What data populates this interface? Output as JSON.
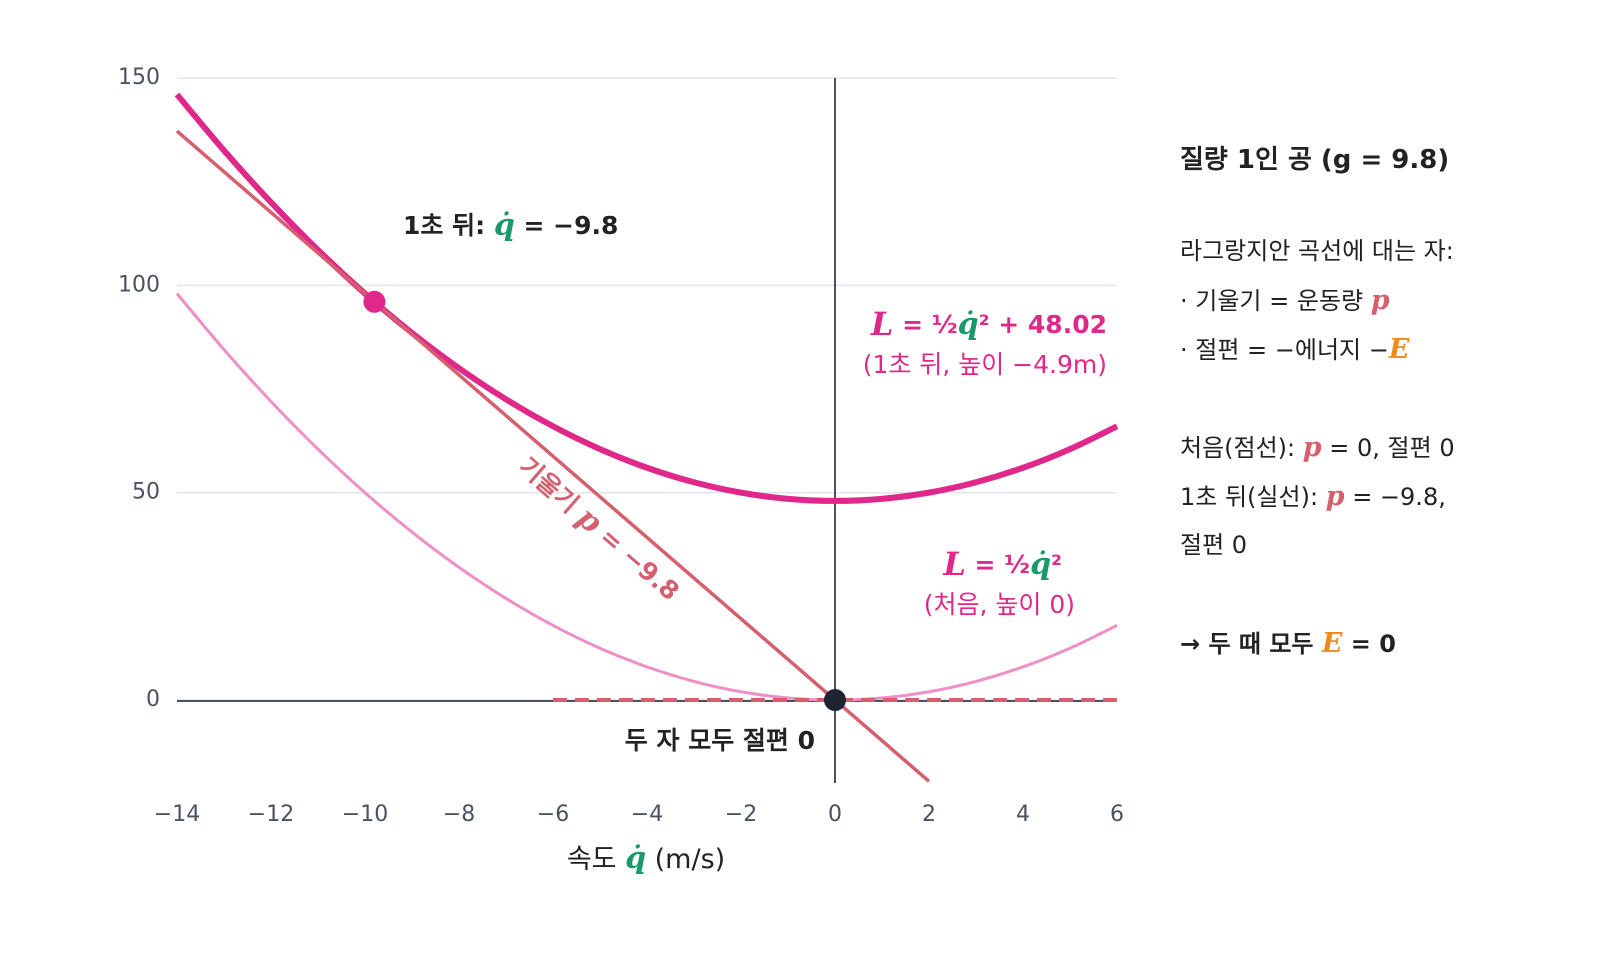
{
  "chart_data": {
    "type": "line",
    "x_label": [
      "속도 ",
      "q̇",
      " (m/s)"
    ],
    "xlim": [
      -14,
      6
    ],
    "ylim": [
      -20,
      150
    ],
    "xticks": [
      {
        "value": -14,
        "label": "−14"
      },
      {
        "value": -12,
        "label": "−12"
      },
      {
        "value": -10,
        "label": "−10"
      },
      {
        "value": -8,
        "label": "−8"
      },
      {
        "value": -6,
        "label": "−6"
      },
      {
        "value": -4,
        "label": "−4"
      },
      {
        "value": -2,
        "label": "−2"
      },
      0,
      2,
      4,
      6
    ],
    "yticks": [
      0,
      50,
      100,
      150
    ],
    "grid": true,
    "series": [
      {
        "color": "#ee8fc6",
        "width": 3,
        "dashed": false,
        "x": [
          -14,
          -13,
          -12,
          -11,
          -10,
          -9,
          -8,
          -7,
          -6,
          -5,
          -4,
          -3,
          -2,
          -1,
          0,
          1,
          2,
          3,
          4,
          5,
          6
        ],
        "values": [
          98,
          84.5,
          72,
          60.5,
          50,
          40.5,
          32,
          24.5,
          18,
          12.5,
          8,
          4.5,
          2,
          0.5,
          0,
          0.5,
          2,
          4.5,
          8,
          12.5,
          18
        ]
      },
      {
        "color": "#e0288a",
        "width": 6,
        "dashed": false,
        "x": [
          -14,
          -13,
          -12,
          -11,
          -10,
          -9,
          -8,
          -7,
          -6,
          -5,
          -4,
          -3,
          -2,
          -1,
          0,
          1,
          2,
          3,
          4,
          5,
          6
        ],
        "values": [
          146.02,
          132.52,
          120.02,
          108.52,
          98.02,
          88.52,
          80.02,
          72.52,
          66.02,
          60.52,
          56.02,
          52.52,
          50.02,
          48.52,
          48.02,
          48.52,
          50.02,
          52.52,
          56.02,
          60.52,
          66.02
        ]
      },
      {
        "color": "#d65f6e",
        "width": 3.5,
        "dashed": false,
        "x": [
          -14,
          2
        ],
        "values": [
          137.2,
          -19.6
        ]
      },
      {
        "color": "#d65f6e",
        "width": 4,
        "dashed": true,
        "x": [
          -6,
          6
        ],
        "values": [
          0,
          0
        ]
      }
    ],
    "points": [
      {
        "x": -9.8,
        "y": 96.04,
        "color": "#e0288a"
      },
      {
        "x": 0,
        "y": 0,
        "color": "#1f2430"
      }
    ],
    "annotations": [
      [
        "1초 뒤: ",
        "q̇",
        " = −9.8"
      ],
      [
        "L",
        " = ½",
        "q̇",
        "² + 48.02"
      ],
      [
        "(1초 뒤, 높이 −4.9m)"
      ],
      [
        "L",
        " = ½",
        "q̇",
        "²"
      ],
      [
        "(처음, 높이 0)"
      ],
      [
        "두 자 모두 절편 0"
      ],
      [
        "기울기 ",
        "p",
        " = −9.8"
      ]
    ]
  },
  "sidebar": {
    "title": "질량 1인 공 (g = 9.8)",
    "lines": [
      [
        "라그랑지안 곡선에 대는 자:"
      ],
      [
        "· 기울기 = 운동량 ",
        "p"
      ],
      [
        "· 절편 = −에너지 −",
        "E"
      ],
      [],
      [
        "처음(점선): ",
        "p",
        " = 0, 절편 0"
      ],
      [
        "1초 뒤(실선): ",
        "p",
        " = −9.8,"
      ],
      [
        "절편 0"
      ],
      [],
      [
        "→ 두 때 모두 ",
        "E",
        " = 0"
      ]
    ]
  }
}
